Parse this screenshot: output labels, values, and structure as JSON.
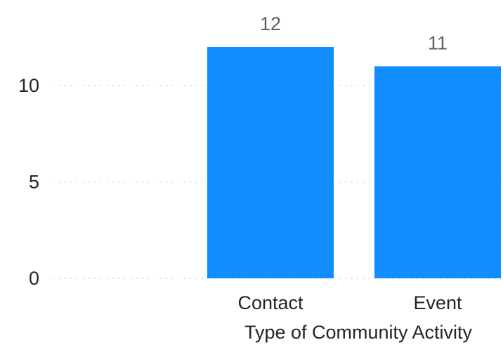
{
  "chart_data": {
    "type": "bar",
    "categories": [
      "Contact",
      "Event"
    ],
    "values": [
      12,
      11
    ],
    "value_labels": [
      "12",
      "11"
    ],
    "xlabel": "Type of Community Activity",
    "ylabel": "",
    "ylim": [
      0,
      12
    ],
    "yticks": [
      0,
      5,
      10
    ],
    "ytick_labels": [
      "0",
      "5",
      "10"
    ],
    "grid": true,
    "legend": "none",
    "colors": {
      "bar": "#118dff",
      "tick_text": "#252423",
      "data_label_text": "#605e5c",
      "gridline": "#c8c6c4"
    }
  }
}
